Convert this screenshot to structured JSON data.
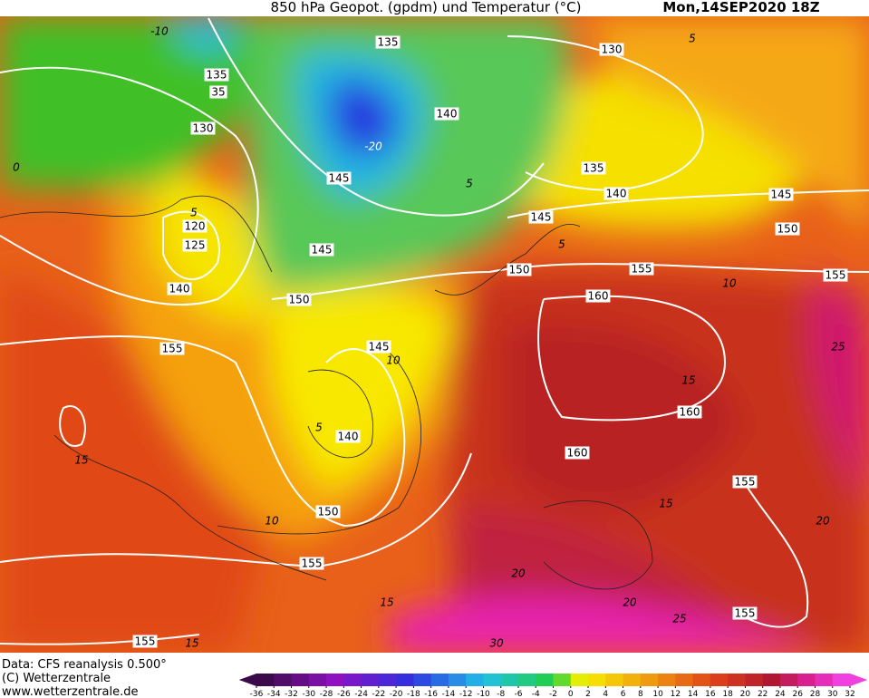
{
  "header": {
    "title": "850 hPa Geopot. (gpdm) und Temperatur (°C)",
    "date": "Mon,14SEP2020 18Z"
  },
  "footer": {
    "source": "Data: CFS reanalysis 0.500°",
    "copyright": "(C) Wetterzentrale",
    "url": "www.wetterzentrale.de"
  },
  "colorbar": {
    "ticks": [
      -36,
      -34,
      -32,
      -30,
      -28,
      -26,
      -24,
      -22,
      -20,
      -18,
      -16,
      -14,
      -12,
      -10,
      -8,
      -6,
      -4,
      -2,
      0,
      2,
      4,
      6,
      8,
      10,
      12,
      14,
      16,
      18,
      20,
      22,
      24,
      26,
      28,
      30,
      32
    ]
  },
  "map": {
    "geopotential_labels": [
      135,
      130,
      135,
      35,
      130,
      140,
      145,
      135,
      140,
      145,
      145,
      120,
      125,
      150,
      145,
      140,
      155,
      150,
      155,
      160,
      150,
      155,
      145,
      140,
      160,
      160,
      155,
      150,
      155,
      155,
      155
    ],
    "temperature_labels": [
      -10,
      0,
      5,
      -20,
      5,
      10,
      15,
      5,
      10,
      15,
      15,
      20,
      25,
      20,
      15,
      20,
      25,
      30,
      15,
      5,
      10,
      5
    ]
  }
}
